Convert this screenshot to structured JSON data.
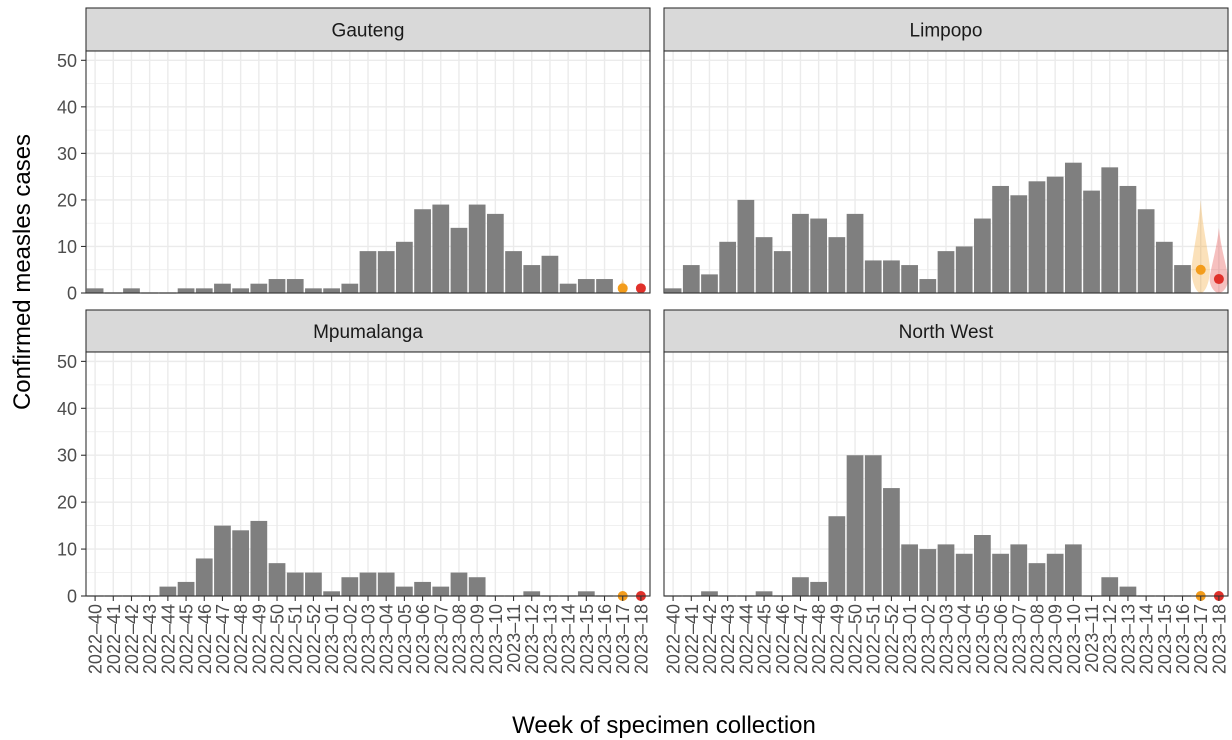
{
  "chart_data": {
    "type": "bar",
    "xlabel": "Week of specimen collection",
    "ylabel": "Confirmed measles cases",
    "ylim": [
      0,
      52
    ],
    "yticks": [
      0,
      10,
      20,
      30,
      40,
      50
    ],
    "grid": true,
    "weeks": [
      "2022–40",
      "2022–41",
      "2022–42",
      "2022–43",
      "2022–44",
      "2022–45",
      "2022–46",
      "2022–47",
      "2022–48",
      "2022–49",
      "2022–50",
      "2022–51",
      "2022–52",
      "2023–01",
      "2023–02",
      "2023–03",
      "2023–04",
      "2023–05",
      "2023–06",
      "2023–07",
      "2023–08",
      "2023–09",
      "2023–10",
      "2023–11",
      "2023–12",
      "2023–13",
      "2023–14",
      "2023–15",
      "2023–16",
      "2023–17",
      "2023–18"
    ],
    "colors": {
      "bar": "#7f7f7f",
      "nowcast_orange": "#f39c1b",
      "nowcast_red": "#e0302a",
      "strip": "#d9d9d9",
      "grid": "#ebebeb"
    },
    "panels": [
      {
        "name": "Gauteng",
        "values": [
          1,
          0,
          1,
          0,
          0,
          1,
          1,
          2,
          1,
          2,
          3,
          3,
          1,
          1,
          2,
          9,
          9,
          11,
          18,
          19,
          14,
          19,
          17,
          9,
          6,
          8,
          2,
          3,
          3
        ],
        "nowcast": [
          {
            "week": "2023–17",
            "estimate": 1,
            "low": 0,
            "high": 3
          },
          {
            "week": "2023–18",
            "estimate": 1,
            "low": 0,
            "high": 2
          }
        ]
      },
      {
        "name": "Limpopo",
        "values": [
          1,
          6,
          4,
          11,
          20,
          12,
          9,
          17,
          16,
          12,
          17,
          7,
          7,
          6,
          3,
          9,
          10,
          16,
          23,
          21,
          24,
          25,
          28,
          22,
          27,
          23,
          18,
          11,
          6
        ],
        "nowcast": [
          {
            "week": "2023–17",
            "estimate": 5,
            "low": 0,
            "high": 20
          },
          {
            "week": "2023–18",
            "estimate": 3,
            "low": 0,
            "high": 14
          }
        ]
      },
      {
        "name": "Mpumalanga",
        "values": [
          0,
          0,
          0,
          0,
          2,
          3,
          8,
          15,
          14,
          16,
          7,
          5,
          5,
          1,
          4,
          5,
          5,
          2,
          3,
          2,
          5,
          4,
          0,
          0,
          1,
          0,
          0,
          1,
          0
        ],
        "nowcast": [
          {
            "week": "2023–17",
            "estimate": 0,
            "low": 0,
            "high": 1
          },
          {
            "week": "2023–18",
            "estimate": 0,
            "low": 0,
            "high": 1
          }
        ]
      },
      {
        "name": "North West",
        "values": [
          0,
          0,
          1,
          0,
          0,
          1,
          0,
          4,
          3,
          17,
          30,
          30,
          23,
          11,
          10,
          11,
          9,
          13,
          9,
          11,
          7,
          9,
          11,
          0,
          4,
          2,
          0,
          0,
          0
        ],
        "nowcast": [
          {
            "week": "2023–17",
            "estimate": 0,
            "low": 0,
            "high": 1
          },
          {
            "week": "2023–18",
            "estimate": 0,
            "low": 0,
            "high": 1
          }
        ]
      }
    ]
  }
}
